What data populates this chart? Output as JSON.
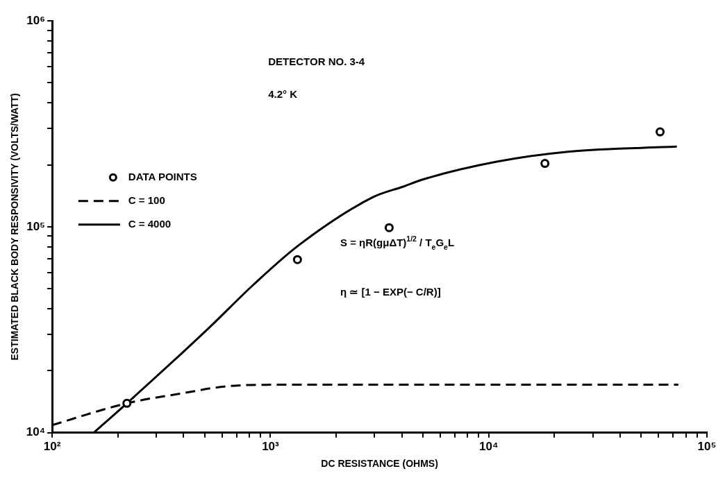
{
  "chart_data": {
    "type": "line",
    "xlabel": "DC RESISTANCE (OHMS)",
    "ylabel": "ESTIMATED BLACK BODY RESPONSIVITY (VOLTS/WATT)",
    "log": "xy",
    "grid": false,
    "legend": "left",
    "xlim": [
      100,
      100000
    ],
    "xticks": [
      {
        "value": 100,
        "label": "10²"
      },
      {
        "value": 200,
        "label": null
      },
      {
        "value": 300,
        "label": null
      },
      {
        "value": 400,
        "label": null
      },
      {
        "value": 500,
        "label": null
      },
      {
        "value": 600,
        "label": null
      },
      {
        "value": 700,
        "label": null
      },
      {
        "value": 800,
        "label": null
      },
      {
        "value": 900,
        "label": null
      },
      {
        "value": 1000,
        "label": "10³"
      },
      {
        "value": 2000,
        "label": null
      },
      {
        "value": 3000,
        "label": null
      },
      {
        "value": 4000,
        "label": null
      },
      {
        "value": 5000,
        "label": null
      },
      {
        "value": 6000,
        "label": null
      },
      {
        "value": 7000,
        "label": null
      },
      {
        "value": 8000,
        "label": null
      },
      {
        "value": 9000,
        "label": null
      },
      {
        "value": 10000,
        "label": "10⁴"
      },
      {
        "value": 20000,
        "label": null
      },
      {
        "value": 30000,
        "label": null
      },
      {
        "value": 40000,
        "label": null
      },
      {
        "value": 50000,
        "label": null
      },
      {
        "value": 60000,
        "label": null
      },
      {
        "value": 70000,
        "label": null
      },
      {
        "value": 80000,
        "label": null
      },
      {
        "value": 90000,
        "label": null
      },
      {
        "value": 100000,
        "label": "10⁵"
      }
    ],
    "ylim": [
      10000,
      1000000
    ],
    "yticks": [
      {
        "value": 10000,
        "label": "10⁴"
      },
      {
        "value": 20000,
        "label": null
      },
      {
        "value": 30000,
        "label": null
      },
      {
        "value": 40000,
        "label": null
      },
      {
        "value": 50000,
        "label": null
      },
      {
        "value": 60000,
        "label": null
      },
      {
        "value": 70000,
        "label": null
      },
      {
        "value": 80000,
        "label": null
      },
      {
        "value": 90000,
        "label": null
      },
      {
        "value": 100000,
        "label": "10⁵"
      },
      {
        "value": 200000,
        "label": null
      },
      {
        "value": 300000,
        "label": null
      },
      {
        "value": 400000,
        "label": null
      },
      {
        "value": 500000,
        "label": null
      },
      {
        "value": 600000,
        "label": null
      },
      {
        "value": 700000,
        "label": null
      },
      {
        "value": 800000,
        "label": null
      },
      {
        "value": 900000,
        "label": null
      },
      {
        "value": 1000000,
        "label": "10⁶"
      }
    ],
    "series": [
      {
        "name": "DATA POINTS",
        "type": "scatter",
        "marker": "circle",
        "color": "#000000",
        "x": [
          220,
          1330,
          3500,
          18100,
          61000
        ],
        "values": [
          13900,
          69300,
          99000,
          203000,
          289000
        ]
      },
      {
        "name": "C = 100",
        "line_style": "dashed",
        "color": "#000000",
        "x": [
          100,
          220,
          402,
          624,
          1000,
          3000,
          10000,
          74000
        ],
        "values": [
          10900,
          13900,
          15600,
          16800,
          17100,
          17100,
          17100,
          17100
        ]
      },
      {
        "name": "C = 4000",
        "line_style": "solid",
        "color": "#000000",
        "x": [
          155,
          220,
          507,
          837,
          1340,
          2940,
          4080,
          5020,
          10900,
          23500,
          72800
        ],
        "values": [
          10000,
          13900,
          31300,
          52400,
          81000,
          139000,
          157000,
          170000,
          207000,
          232000,
          245000
        ]
      }
    ],
    "annotations": [
      "DETECTOR NO. 3-4",
      "4.2° K",
      "S = ηR(gμΔT)$^{1/2}$ / T$_{e}$G$_{e}$L",
      "η ≃ [1 − EXP(− C/R)]"
    ]
  }
}
